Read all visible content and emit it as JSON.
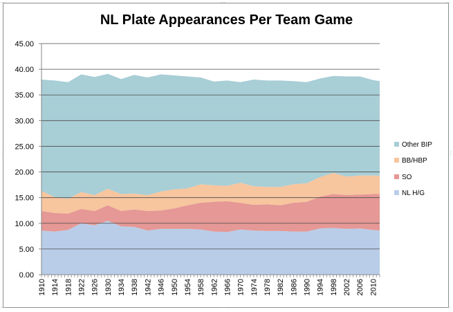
{
  "chart_data": {
    "type": "area",
    "stacked": true,
    "title": "NL Plate Appearances Per Team Game",
    "xlabel": "",
    "ylabel": "",
    "ylim": [
      0,
      45
    ],
    "yticks": [
      "0.00",
      "5.00",
      "10.00",
      "15.00",
      "20.00",
      "25.00",
      "30.00",
      "35.00",
      "40.00",
      "45.00"
    ],
    "xticks": [
      "1910",
      "1914",
      "1918",
      "1922",
      "1926",
      "1930",
      "1934",
      "1938",
      "1942",
      "1946",
      "1950",
      "1954",
      "1958",
      "1962",
      "1966",
      "1970",
      "1974",
      "1978",
      "1982",
      "1986",
      "1990",
      "1994",
      "1998",
      "2002",
      "2006",
      "2010"
    ],
    "grid": true,
    "legend_position": "right",
    "x_years": [
      1910,
      1914,
      1918,
      1922,
      1926,
      1930,
      1934,
      1938,
      1942,
      1946,
      1950,
      1954,
      1958,
      1962,
      1966,
      1970,
      1974,
      1978,
      1982,
      1986,
      1990,
      1994,
      1998,
      2002,
      2006,
      2010,
      2012
    ],
    "series": [
      {
        "name": "NL H/G",
        "color": "#b9cde9",
        "values": [
          8.6,
          8.4,
          8.7,
          10.0,
          9.6,
          10.5,
          9.4,
          9.3,
          8.6,
          8.9,
          8.9,
          8.9,
          8.8,
          8.4,
          8.3,
          8.8,
          8.6,
          8.5,
          8.5,
          8.4,
          8.4,
          9.0,
          9.1,
          8.9,
          9.0,
          8.7,
          8.6
        ]
      },
      {
        "name": "SO",
        "color": "#e59895",
        "values": [
          3.8,
          3.6,
          3.2,
          2.8,
          2.8,
          3.0,
          3.0,
          3.4,
          3.8,
          3.6,
          4.0,
          4.6,
          5.2,
          5.8,
          6.0,
          5.2,
          5.0,
          5.2,
          5.0,
          5.6,
          5.8,
          6.2,
          6.6,
          6.6,
          6.6,
          7.0,
          7.1
        ]
      },
      {
        "name": "BB/HBP",
        "color": "#f7c59e",
        "values": [
          3.9,
          3.1,
          2.9,
          3.3,
          3.1,
          3.2,
          3.3,
          3.1,
          3.1,
          3.7,
          3.7,
          3.3,
          3.6,
          3.2,
          3.0,
          3.9,
          3.6,
          3.4,
          3.6,
          3.6,
          3.6,
          3.8,
          4.1,
          3.6,
          3.7,
          3.6,
          3.6
        ]
      },
      {
        "name": "Other BIP",
        "color": "#a8ced6",
        "values": [
          21.7,
          22.7,
          22.7,
          22.9,
          23.0,
          22.4,
          22.4,
          23.1,
          22.9,
          22.8,
          22.2,
          21.8,
          20.8,
          20.2,
          20.5,
          19.6,
          20.8,
          20.7,
          20.7,
          20.1,
          19.7,
          19.2,
          18.9,
          19.5,
          19.3,
          18.6,
          18.4
        ]
      }
    ],
    "legend_order": [
      "Other BIP",
      "BB/HBP",
      "SO",
      "NL H/G"
    ]
  }
}
